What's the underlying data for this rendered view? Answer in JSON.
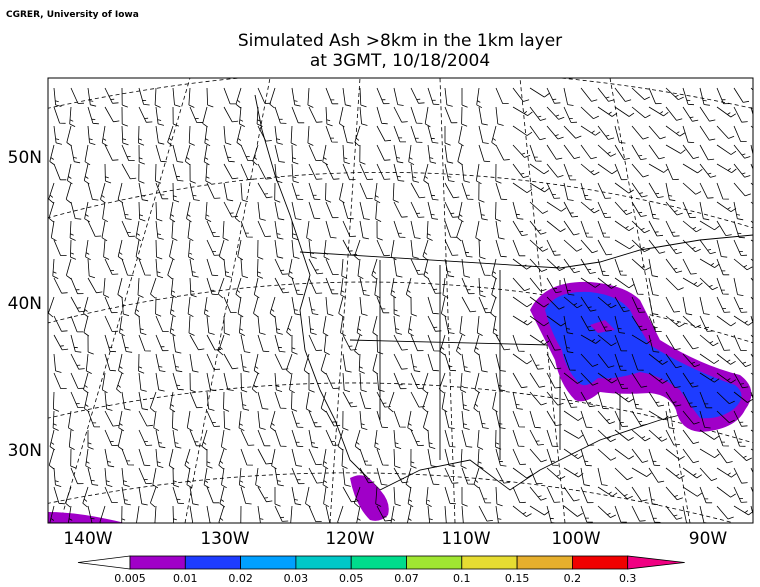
{
  "credit": "CGRER, University of Iowa",
  "title": [
    "Simulated Ash  >8km in the 1km layer",
    "at 3GMT, 10/18/2004"
  ],
  "map": {
    "lat_labels": [
      "50N",
      "40N",
      "30N"
    ],
    "lon_labels": [
      "140W",
      "130W",
      "120W",
      "110W",
      "100W",
      "90W"
    ]
  },
  "colorbar": {
    "levels": [
      "0.005",
      "0.01",
      "0.02",
      "0.03",
      "0.05",
      "0.07",
      "0.1",
      "0.15",
      "0.2",
      "0.3"
    ],
    "colors": [
      "#ffffff",
      "#a000c8",
      "#1e3cff",
      "#00a0ff",
      "#00c8c8",
      "#00dc8c",
      "#a0e632",
      "#e6dc32",
      "#e6af2d",
      "#f00000",
      "#f00082"
    ]
  }
}
